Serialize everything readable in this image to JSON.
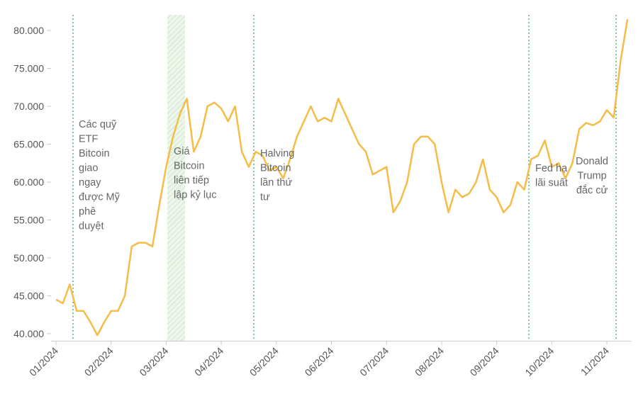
{
  "chart_data": {
    "type": "line",
    "categories": [
      "01/2024",
      null,
      null,
      null,
      null,
      null,
      null,
      null,
      "02/2024",
      null,
      null,
      null,
      null,
      null,
      null,
      null,
      "03/2024",
      null,
      null,
      null,
      null,
      null,
      null,
      null,
      "04/2024",
      null,
      null,
      null,
      null,
      null,
      null,
      null,
      "05/2024",
      null,
      null,
      null,
      null,
      null,
      null,
      null,
      "06/2024",
      null,
      null,
      null,
      null,
      null,
      null,
      null,
      "07/2024",
      null,
      null,
      null,
      null,
      null,
      null,
      null,
      "08/2024",
      null,
      null,
      null,
      null,
      null,
      null,
      null,
      "09/2024",
      null,
      null,
      null,
      null,
      null,
      null,
      null,
      "10/2024",
      null,
      null,
      null,
      null,
      null,
      null,
      null,
      "11/2024",
      null,
      null,
      null
    ],
    "series": [
      {
        "color": "#f5bd47",
        "values": [
          44500,
          44000,
          46500,
          43000,
          43000,
          41500,
          39800,
          41500,
          43000,
          43000,
          45000,
          51500,
          52000,
          52000,
          51500,
          57000,
          62000,
          66000,
          69000,
          71000,
          64000,
          66000,
          70000,
          70500,
          69700,
          68000,
          70000,
          64000,
          62000,
          64000,
          63500,
          61500,
          62000,
          60500,
          63000,
          66000,
          68000,
          70000,
          68000,
          68500,
          68000,
          71000,
          69000,
          67000,
          65000,
          64000,
          61000,
          61500,
          62000,
          56000,
          57500,
          60000,
          65000,
          66000,
          66000,
          65000,
          60000,
          56000,
          59000,
          58000,
          58500,
          60000,
          63000,
          59000,
          58000,
          56000,
          57000,
          60000,
          59000,
          63000,
          63500,
          65500,
          62000,
          62500,
          60500,
          62500,
          67000,
          67800,
          67500,
          68000,
          69500,
          68500,
          76000,
          81500
        ]
      }
    ],
    "ylim": [
      39000,
      82000
    ],
    "yticks": [
      {
        "value": 40000,
        "label": "40.000"
      },
      {
        "value": 45000,
        "label": "45.000"
      },
      {
        "value": 50000,
        "label": "50.000"
      },
      {
        "value": 55000,
        "label": "55.000"
      },
      {
        "value": 60000,
        "label": "60.000"
      },
      {
        "value": 65000,
        "label": "65.000"
      },
      {
        "value": 70000,
        "label": "70.000"
      },
      {
        "value": 75000,
        "label": "75.000"
      },
      {
        "value": 80000,
        "label": "80.000"
      }
    ],
    "grid": false,
    "annotations": [
      {
        "lines": [
          "Các quỹ",
          "ETF",
          "Bitcoin",
          "giao",
          "ngay",
          "được Mỹ",
          "phê",
          "duyệt"
        ]
      },
      {
        "lines": [
          "Giá",
          "Bitcoin",
          "liên tiếp",
          "lập kỷ lục"
        ]
      },
      {
        "lines": [
          "Halving",
          "Bitcoin",
          "lần thứ",
          "tư"
        ]
      },
      {
        "lines": [
          "Fed hạ",
          "lãi suất"
        ]
      },
      {
        "lines": [
          "Donald",
          "Trump",
          "đắc cử"
        ]
      }
    ]
  }
}
